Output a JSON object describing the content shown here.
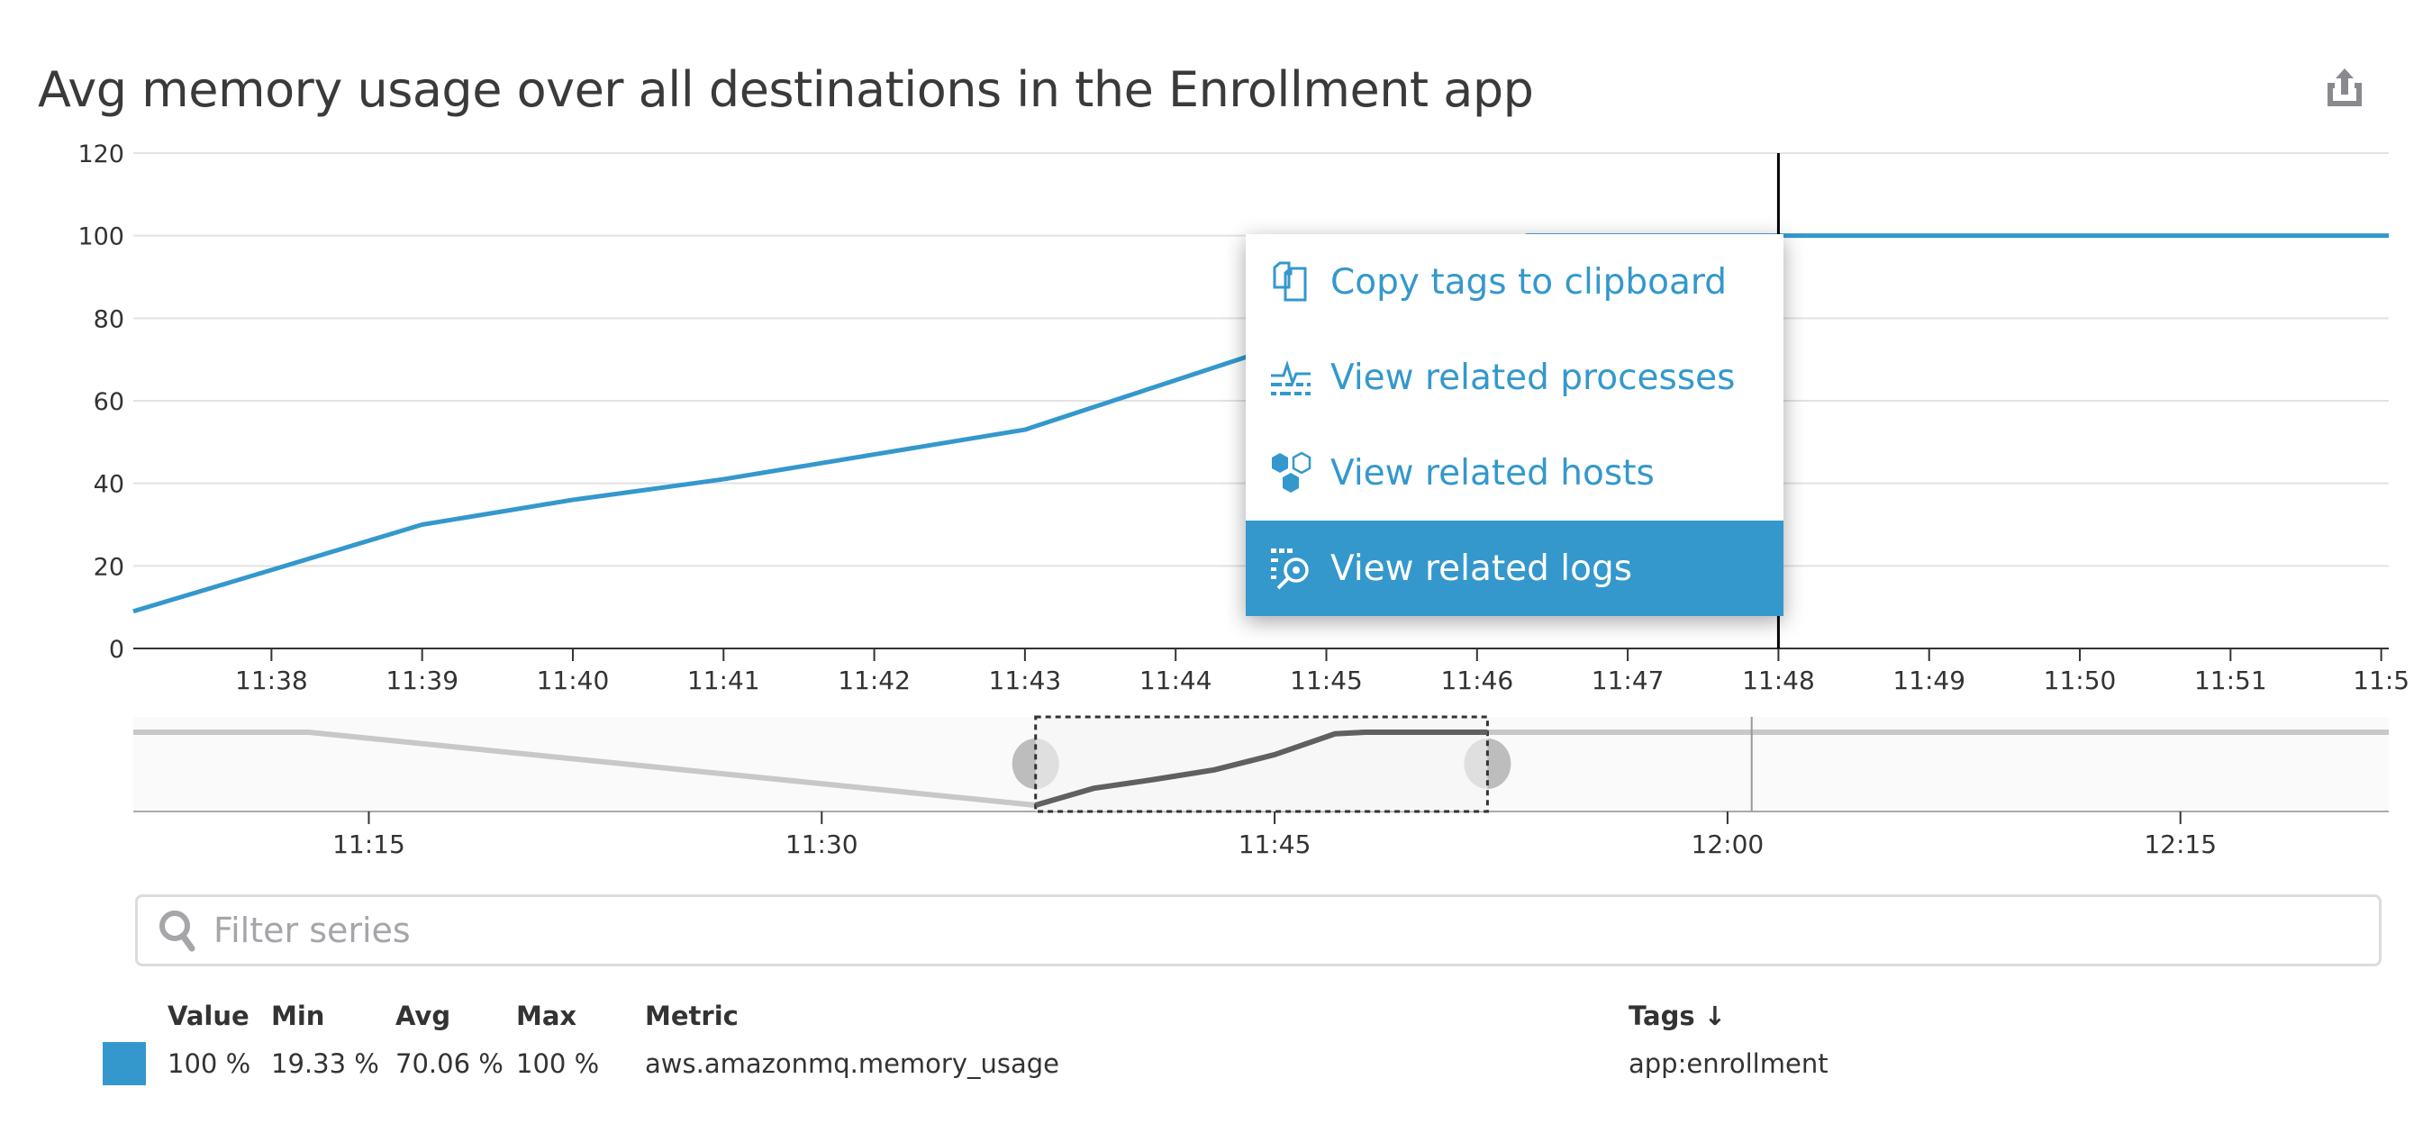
{
  "widget": {
    "title": "Avg memory usage over all destinations in the Enrollment app",
    "export_icon": "share-export-icon"
  },
  "colors": {
    "series": "#3498cc",
    "navigator_line": "#c8c8c8",
    "navigator_selected_line": "#606060",
    "crosshair": "#000000"
  },
  "chart_data": {
    "type": "line",
    "title": "Avg memory usage over all destinations in the Enrollment app",
    "xlabel": "",
    "ylabel": "",
    "ylim": [
      0,
      120
    ],
    "yticks": [
      "0",
      "20",
      "40",
      "60",
      "80",
      "100",
      "120"
    ],
    "xlim": [
      "11:37:05",
      "11:52:03"
    ],
    "xticks": [
      "11:38",
      "11:39",
      "11:40",
      "11:41",
      "11:42",
      "11:43",
      "11:44",
      "11:45",
      "11:46",
      "11:47",
      "11:48",
      "11:49",
      "11:50",
      "11:51",
      "11:5"
    ],
    "grid": true,
    "crosshair_at": "11:48",
    "series": [
      {
        "x": [
          "11:37:05",
          "11:38:00",
          "11:39:00",
          "11:40:00",
          "11:41:00",
          "11:42:00",
          "11:43:00",
          "11:44:00",
          "11:44:30",
          "11:45:30",
          "11:46:20",
          "11:48:00",
          "11:52:03"
        ],
        "y": [
          9,
          19,
          30,
          36,
          41,
          47,
          53,
          65,
          71,
          90,
          100,
          100,
          100
        ]
      }
    ],
    "navigator": {
      "xlim": [
        "11:07:12",
        "12:21:54"
      ],
      "xticks": [
        "11:15",
        "11:30",
        "11:45",
        "12:00",
        "12:15"
      ],
      "selection": [
        "11:37:05",
        "11:52:03"
      ],
      "marker_at": "12:00:48",
      "x": [
        "11:07:12",
        "11:13:00",
        "11:37:05",
        "11:39:00",
        "11:41:00",
        "11:43:00",
        "11:45:00",
        "11:47:00",
        "11:48:00",
        "12:21:54"
      ],
      "y": [
        100,
        100,
        9,
        30,
        41,
        53,
        72,
        98,
        100,
        100
      ]
    }
  },
  "context_menu": {
    "items": [
      {
        "label": "Copy tags to clipboard",
        "icon": "copy-icon",
        "active": false
      },
      {
        "label": "View related processes",
        "icon": "processes-icon",
        "active": false
      },
      {
        "label": "View related hosts",
        "icon": "hosts-icon",
        "active": false
      },
      {
        "label": "View related logs",
        "icon": "logs-icon",
        "active": true
      }
    ]
  },
  "filter": {
    "placeholder": "Filter series",
    "value": ""
  },
  "legend": {
    "headers": {
      "value": "Value",
      "min": "Min",
      "avg": "Avg",
      "max": "Max",
      "metric": "Metric",
      "tags": "Tags ↓"
    },
    "rows": [
      {
        "value": "100 %",
        "min": "19.33 %",
        "avg": "70.06 %",
        "max": "100 %",
        "metric": "aws.amazonmq.memory_usage",
        "tags": "app:enrollment",
        "color": "#3498cc"
      }
    ]
  }
}
